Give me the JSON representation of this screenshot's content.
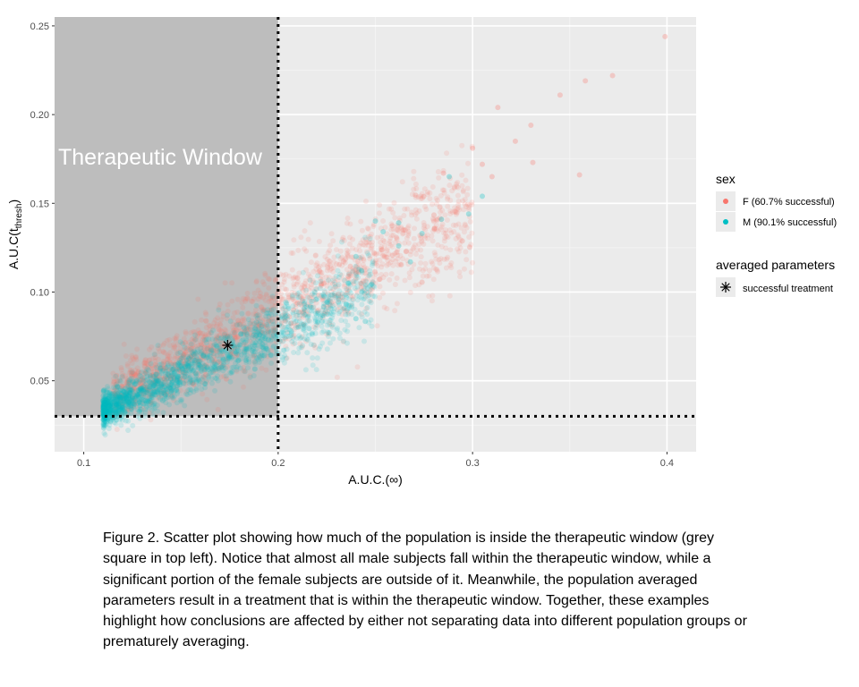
{
  "chart_data": {
    "type": "scatter",
    "title": "",
    "xlabel": "A.U.C.(∞)",
    "ylabel_main": "A.U.C(t",
    "ylabel_sub": "thresh",
    "ylabel_close": ")",
    "xlim": [
      0.085,
      0.415
    ],
    "ylim": [
      0.01,
      0.255
    ],
    "x_ticks": [
      {
        "value": 0.1,
        "label": "0.1"
      },
      {
        "value": 0.2,
        "label": "0.2"
      },
      {
        "value": 0.3,
        "label": "0.3"
      },
      {
        "value": 0.4,
        "label": "0.4"
      }
    ],
    "y_ticks": [
      {
        "value": 0.05,
        "label": "0.05"
      },
      {
        "value": 0.1,
        "label": "0.10"
      },
      {
        "value": 0.15,
        "label": "0.15"
      },
      {
        "value": 0.2,
        "label": "0.20"
      },
      {
        "value": 0.25,
        "label": "0.25"
      }
    ],
    "grid": true,
    "therapeutic_window": {
      "label": "Therapeutic Window",
      "x_max": 0.2,
      "y_min": 0.03,
      "color": "#bdbdbd"
    },
    "threshold_lines": {
      "x": 0.2,
      "y": 0.03
    },
    "series": [
      {
        "name": "F (60.7% successful)",
        "color": "#F8766D",
        "opacity": 0.15,
        "trend": {
          "slope": 0.57,
          "intercept": -0.024,
          "x_range": [
            0.115,
            0.3
          ],
          "spread": 0.012
        },
        "outliers": [
          [
            0.399,
            0.244
          ],
          [
            0.372,
            0.222
          ],
          [
            0.358,
            0.219
          ],
          [
            0.345,
            0.211
          ],
          [
            0.355,
            0.166
          ],
          [
            0.33,
            0.194
          ],
          [
            0.331,
            0.173
          ],
          [
            0.313,
            0.204
          ],
          [
            0.322,
            0.185
          ],
          [
            0.3,
            0.181
          ],
          [
            0.285,
            0.167
          ],
          [
            0.305,
            0.172
          ],
          [
            0.31,
            0.165
          ]
        ]
      },
      {
        "name": "M (90.1% successful)",
        "color": "#00BFC4",
        "opacity": 0.15,
        "trend": {
          "slope": 0.5,
          "intercept": -0.022,
          "x_range": [
            0.11,
            0.25
          ],
          "spread": 0.008
        },
        "outliers": [
          [
            0.24,
            0.12
          ],
          [
            0.243,
            0.112
          ],
          [
            0.236,
            0.105
          ],
          [
            0.235,
            0.093
          ],
          [
            0.24,
            0.085
          ],
          [
            0.25,
            0.14
          ],
          [
            0.254,
            0.134
          ],
          [
            0.262,
            0.139
          ],
          [
            0.262,
            0.126
          ],
          [
            0.268,
            0.117
          ],
          [
            0.288,
            0.165
          ],
          [
            0.284,
            0.141
          ],
          [
            0.274,
            0.133
          ],
          [
            0.298,
            0.144
          ],
          [
            0.305,
            0.154
          ]
        ]
      }
    ],
    "averaged_point": {
      "x": 0.174,
      "y": 0.07,
      "label": "successful treatment"
    },
    "legend": {
      "position": "right",
      "sex_title": "sex",
      "averaged_title": "averaged parameters"
    }
  },
  "caption": "Figure 2. Scatter plot showing how much of the population is inside the therapeutic window (grey square in top left). Notice that almost all male subjects fall within the therapeutic window, while a significant portion of the female subjects are outside of it. Meanwhile, the population averaged parameters result in a treatment that is within the therapeutic window. Together, these examples highlight how conclusions are affected by either not separating data into different population groups or prematurely averaging."
}
